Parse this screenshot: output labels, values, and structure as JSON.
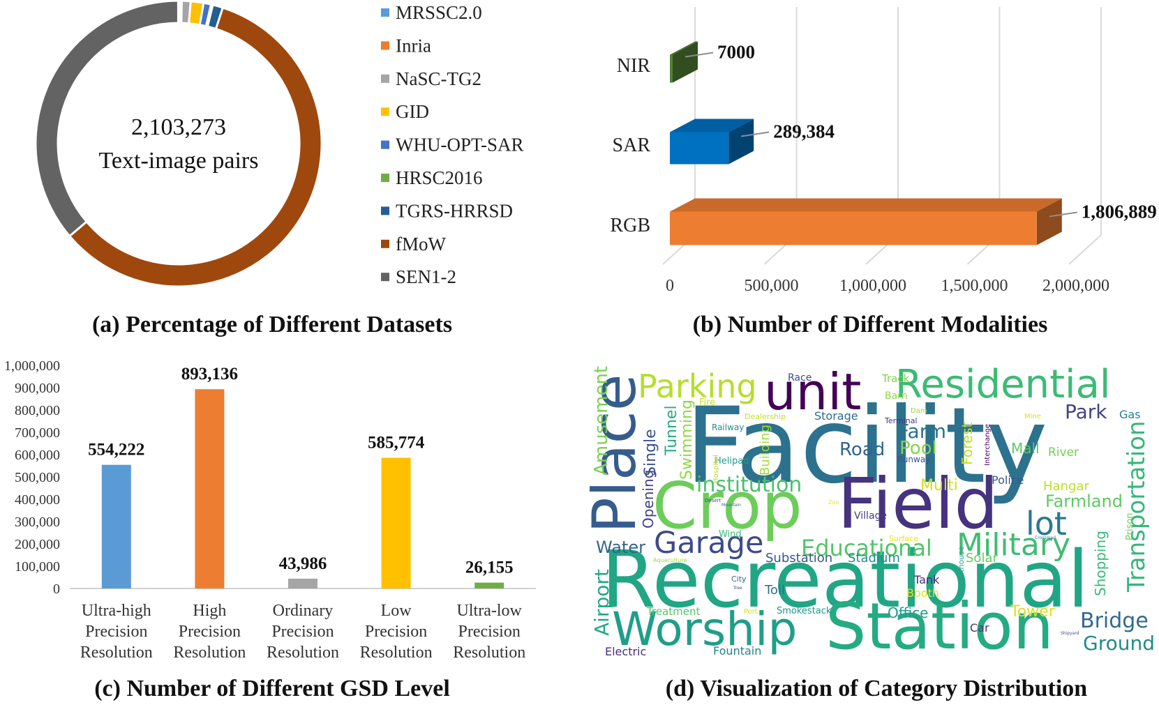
{
  "chart_data": [
    {
      "type": "pie",
      "variant": "donut",
      "caption": "(a) Percentage of Different Datasets",
      "center_value": "2,103,273",
      "center_label": "Text-image pairs",
      "legend_position": "right",
      "slices": [
        {
          "name": "MRSSC2.0",
          "color": "#5b9bd5",
          "share": 0.002
        },
        {
          "name": "Inria",
          "color": "#ed7d31",
          "share": 0.0015
        },
        {
          "name": "NaSC-TG2",
          "color": "#a5a5a5",
          "share": 0.01
        },
        {
          "name": "GID",
          "color": "#ffc000",
          "share": 0.0145
        },
        {
          "name": "WHU-OPT-SAR",
          "color": "#4472c4",
          "share": 0.0085
        },
        {
          "name": "HRSC2016",
          "color": "#70ad47",
          "share": 0.002
        },
        {
          "name": "TGRS-HRRSD",
          "color": "#255e91",
          "share": 0.0115
        },
        {
          "name": "fMoW",
          "color": "#9e480e",
          "share": 0.588
        },
        {
          "name": "SEN1-2",
          "color": "#636363",
          "share": 0.3615
        }
      ]
    },
    {
      "type": "bar",
      "orientation": "horizontal",
      "style": "3d",
      "caption": "(b) Number of Different Modalities",
      "categories": [
        "NIR",
        "SAR",
        "RGB"
      ],
      "values": [
        7000,
        289384,
        1806889
      ],
      "value_labels": [
        "7000",
        "289,384",
        "1,806,889"
      ],
      "colors": [
        "#548235",
        "#0070c0",
        "#ed7d31"
      ],
      "xlim": [
        0,
        2000000
      ],
      "x_ticks": [
        "0",
        "500,000",
        "1,000,000",
        "1,500,000",
        "2,000,000"
      ],
      "grid": true
    },
    {
      "type": "bar",
      "caption": "(c) Number of Different GSD Level",
      "categories": [
        [
          "Ultra-high",
          "Precision",
          "Resolution"
        ],
        [
          "High",
          "Precision",
          "Resolution"
        ],
        [
          "Ordinary",
          "Precision",
          "Resolution"
        ],
        [
          "Low",
          "Precision",
          "Resolution"
        ],
        [
          "Ultra-low",
          "Precision",
          "Resolution"
        ]
      ],
      "values": [
        554222,
        893136,
        43986,
        585774,
        26155
      ],
      "value_labels": [
        "554,222",
        "893,136",
        "43,986",
        "585,774",
        "26,155"
      ],
      "colors": [
        "#5b9bd5",
        "#ed7d31",
        "#a5a5a5",
        "#ffc000",
        "#70ad47"
      ],
      "ylim": [
        0,
        1000000
      ],
      "y_ticks": [
        "0",
        "100,000",
        "200,000",
        "300,000",
        "400,000",
        "500,000",
        "600,000",
        "700,000",
        "800,000",
        "900,000",
        "1,000,000"
      ],
      "grid": false
    },
    {
      "type": "wordcloud",
      "caption": "(d) Visualization of Category Distribution",
      "words": [
        {
          "text": "Facility",
          "color": "#2c728e"
        },
        {
          "text": "Recreational",
          "color": "#21a685"
        },
        {
          "text": "Station",
          "color": "#25ab82"
        },
        {
          "text": "Crop",
          "color": "#6ccd5a"
        },
        {
          "text": "Field",
          "color": "#46337e"
        },
        {
          "text": "Place",
          "color": "#365c8d"
        },
        {
          "text": "Worship",
          "color": "#1f9e89"
        },
        {
          "text": "Residential",
          "color": "#3bbb75"
        },
        {
          "text": "unit",
          "color": "#440154"
        },
        {
          "text": "Parking",
          "color": "#b5de2b"
        },
        {
          "text": "Military",
          "color": "#3fbc73"
        },
        {
          "text": "Garage",
          "color": "#3e4a89"
        },
        {
          "text": "Educational",
          "color": "#52c569"
        },
        {
          "text": "institution",
          "color": "#4ac16d"
        },
        {
          "text": "lot",
          "color": "#2a788e"
        },
        {
          "text": "Transportation",
          "color": "#35b779"
        },
        {
          "text": "Bridge",
          "color": "#31688e"
        },
        {
          "text": "Park",
          "color": "#414487"
        },
        {
          "text": "Farmland",
          "color": "#5ec962"
        },
        {
          "text": "Farm",
          "color": "#2d708e"
        },
        {
          "text": "Pool",
          "color": "#84d44b"
        },
        {
          "text": "Road",
          "color": "#32648e"
        },
        {
          "text": "Ground",
          "color": "#23898e"
        },
        {
          "text": "Amusement",
          "color": "#7ad151"
        },
        {
          "text": "Airport",
          "color": "#22a884"
        },
        {
          "text": "Water",
          "color": "#33638d"
        },
        {
          "text": "Tunnel",
          "color": "#27ad81"
        },
        {
          "text": "Swimming",
          "color": "#90d743"
        },
        {
          "text": "Single",
          "color": "#3b528b"
        },
        {
          "text": "Opening",
          "color": "#424086"
        },
        {
          "text": "Building",
          "color": "#a2da37"
        },
        {
          "text": "Forest",
          "color": "#c2df23"
        },
        {
          "text": "Shopping",
          "color": "#3aba76"
        },
        {
          "text": "Mall",
          "color": "#5ec962"
        },
        {
          "text": "River",
          "color": "#73d056"
        },
        {
          "text": "Hangar",
          "color": "#bddf26"
        },
        {
          "text": "Police",
          "color": "#38598c"
        },
        {
          "text": "Multi",
          "color": "#cde11d"
        },
        {
          "text": "Tower",
          "color": "#d8e219"
        },
        {
          "text": "Office",
          "color": "#1e9b8a"
        },
        {
          "text": "Toll",
          "color": "#2e6f8e"
        },
        {
          "text": "Tank",
          "color": "#482878"
        },
        {
          "text": "Booth",
          "color": "#e2e418"
        },
        {
          "text": "Solar",
          "color": "#65cb5e"
        },
        {
          "text": "Substation",
          "color": "#39568c"
        },
        {
          "text": "Stadium",
          "color": "#23898e"
        },
        {
          "text": "Fountain",
          "color": "#26828e"
        },
        {
          "text": "Electric",
          "color": "#472d7b"
        },
        {
          "text": "Treatment",
          "color": "#54c568"
        },
        {
          "text": "Smokestack",
          "color": "#1f968b"
        },
        {
          "text": "Car",
          "color": "#46337e"
        },
        {
          "text": "Gas",
          "color": "#277f8e"
        },
        {
          "text": "Prison",
          "color": "#6ece58"
        },
        {
          "text": "Interchange",
          "color": "#440154"
        },
        {
          "text": "Lighthouse",
          "color": "#20a486"
        },
        {
          "text": "Race",
          "color": "#3e4989"
        },
        {
          "text": "Track",
          "color": "#7fd34e"
        },
        {
          "text": "Barn",
          "color": "#8bd646"
        },
        {
          "text": "Fire",
          "color": "#c8e020"
        },
        {
          "text": "Railway",
          "color": "#218f8d"
        },
        {
          "text": "Helipad",
          "color": "#1f9a8a"
        },
        {
          "text": "Dealership",
          "color": "#c0df25"
        },
        {
          "text": "Storage",
          "color": "#2f6b8e"
        },
        {
          "text": "Terminal",
          "color": "#46317e"
        },
        {
          "text": "Runway",
          "color": "#3d4e8a"
        },
        {
          "text": "Dam",
          "color": "#a0da39"
        },
        {
          "text": "Mine",
          "color": "#d5e21a"
        },
        {
          "text": "Village",
          "color": "#443a83"
        },
        {
          "text": "Wind",
          "color": "#37b878"
        },
        {
          "text": "Hospital",
          "color": "#b8de29"
        },
        {
          "text": "Surface",
          "color": "#e5e419"
        },
        {
          "text": "City",
          "color": "#31668e"
        },
        {
          "text": "Port",
          "color": "#d2e21b"
        },
        {
          "text": "Aquaculture",
          "color": "#9dd93b"
        },
        {
          "text": "Desert",
          "color": "#3e4989"
        },
        {
          "text": "Mountain",
          "color": "#32648e"
        },
        {
          "text": "Zoo",
          "color": "#e2e418"
        },
        {
          "text": "Tree",
          "color": "#3f4788"
        },
        {
          "text": "Crossroad",
          "color": "#2a788e"
        },
        {
          "text": "Shipyard",
          "color": "#3f4889"
        }
      ]
    }
  ]
}
